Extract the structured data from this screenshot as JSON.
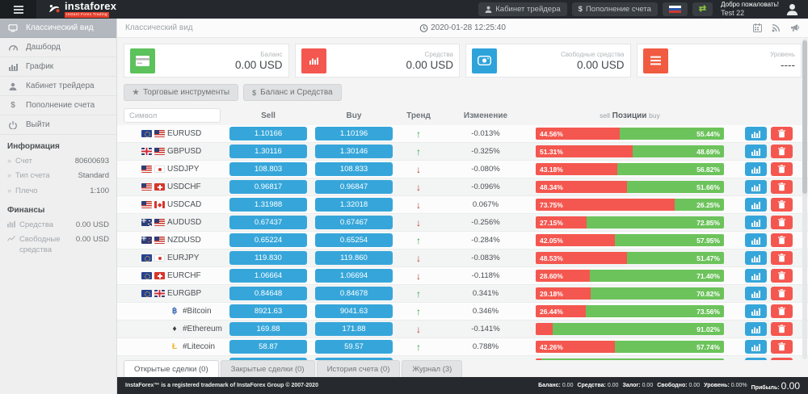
{
  "header": {
    "logo_text": "instaforex",
    "logo_tagline": "Instant Forex Trading",
    "cabinet_button": "Кабинет трейдера",
    "deposit_button": "Пополнение счета",
    "welcome_line1": "Добро пожаловать!",
    "welcome_line2": "Test 22"
  },
  "sidebar": {
    "items": [
      {
        "label": "Классический вид",
        "icon": "monitor-icon",
        "active": true
      },
      {
        "label": "Дашборд",
        "icon": "dashboard-icon",
        "active": false
      },
      {
        "label": "График",
        "icon": "chart-icon",
        "active": false
      },
      {
        "label": "Кабинет трейдера",
        "icon": "user-icon",
        "active": false
      },
      {
        "label": "Пополнение счета",
        "icon": "dollar-icon",
        "active": false
      },
      {
        "label": "Выйти",
        "icon": "power-icon",
        "active": false
      }
    ],
    "info_section": {
      "title": "Информация",
      "rows": [
        {
          "label": "Счет",
          "value": "80600693"
        },
        {
          "label": "Тип счета",
          "value": "Standard"
        },
        {
          "label": "Плечо",
          "value": "1:100"
        }
      ]
    },
    "finance_section": {
      "title": "Финансы",
      "rows": [
        {
          "label": "Средства",
          "value": "0.00 USD",
          "icon": "bar-chart-icon"
        },
        {
          "label": "Свободные средства",
          "value": "0.00 USD",
          "icon": "line-chart-icon"
        }
      ]
    }
  },
  "main": {
    "page_title": "Классический вид",
    "timestamp": "2020-01-28 12:25:40",
    "cards": [
      {
        "label": "Баланс",
        "value": "0.00 USD",
        "icon": "credit-card-icon",
        "color": "#5cc25c"
      },
      {
        "label": "Средства",
        "value": "0.00 USD",
        "icon": "bar-chart-icon",
        "color": "#f4574f"
      },
      {
        "label": "Свободные средства",
        "value": "0.00 USD",
        "icon": "eye-icon",
        "color": "#2ea3da"
      },
      {
        "label": "Уровень",
        "value": "----",
        "icon": "menu-icon",
        "color": "#f15b41"
      }
    ],
    "toolbar": [
      {
        "label": "Торговые инструменты",
        "icon": "star-icon",
        "glyph": "★"
      },
      {
        "label": "Баланс и Средства",
        "icon": "dollar-icon",
        "glyph": "$"
      }
    ],
    "table": {
      "search_placeholder": "Символ",
      "headers": {
        "sell": "Sell",
        "buy": "Buy",
        "trend": "Тренд",
        "change": "Изменение"
      },
      "positions_header": {
        "left": "sell",
        "center": "Позиции",
        "right": "buy"
      },
      "rows": [
        {
          "symbol": "EURUSD",
          "flags": [
            "eu",
            "us"
          ],
          "sell": "1.10166",
          "buy": "1.10196",
          "trend": "up",
          "change": "-0.013%",
          "sell_pct": 44.56,
          "sell_label": "44.56%",
          "buy_pct": 55.44,
          "buy_label": "55.44%"
        },
        {
          "symbol": "GBPUSD",
          "flags": [
            "gb",
            "us"
          ],
          "sell": "1.30116",
          "buy": "1.30146",
          "trend": "up",
          "change": "-0.325%",
          "sell_pct": 51.31,
          "sell_label": "51.31%",
          "buy_pct": 48.69,
          "buy_label": "48.69%"
        },
        {
          "symbol": "USDJPY",
          "flags": [
            "us",
            "jp"
          ],
          "sell": "108.803",
          "buy": "108.833",
          "trend": "down",
          "change": "-0.080%",
          "sell_pct": 43.18,
          "sell_label": "43.18%",
          "buy_pct": 56.82,
          "buy_label": "56.82%"
        },
        {
          "symbol": "USDCHF",
          "flags": [
            "us",
            "ch"
          ],
          "sell": "0.96817",
          "buy": "0.96847",
          "trend": "down",
          "change": "-0.096%",
          "sell_pct": 48.34,
          "sell_label": "48.34%",
          "buy_pct": 51.66,
          "buy_label": "51.66%"
        },
        {
          "symbol": "USDCAD",
          "flags": [
            "us",
            "ca"
          ],
          "sell": "1.31988",
          "buy": "1.32018",
          "trend": "down",
          "change": "0.067%",
          "sell_pct": 73.75,
          "sell_label": "73.75%",
          "buy_pct": 26.25,
          "buy_label": "26.25%"
        },
        {
          "symbol": "AUDUSD",
          "flags": [
            "au",
            "us"
          ],
          "sell": "0.67437",
          "buy": "0.67467",
          "trend": "down",
          "change": "-0.256%",
          "sell_pct": 27.15,
          "sell_label": "27.15%",
          "buy_pct": 72.85,
          "buy_label": "72.85%"
        },
        {
          "symbol": "NZDUSD",
          "flags": [
            "nz",
            "us"
          ],
          "sell": "0.65224",
          "buy": "0.65254",
          "trend": "up",
          "change": "-0.284%",
          "sell_pct": 42.05,
          "sell_label": "42.05%",
          "buy_pct": 57.95,
          "buy_label": "57.95%"
        },
        {
          "symbol": "EURJPY",
          "flags": [
            "eu",
            "jp"
          ],
          "sell": "119.830",
          "buy": "119.860",
          "trend": "down",
          "change": "-0.083%",
          "sell_pct": 48.53,
          "sell_label": "48.53%",
          "buy_pct": 51.47,
          "buy_label": "51.47%"
        },
        {
          "symbol": "EURCHF",
          "flags": [
            "eu",
            "ch"
          ],
          "sell": "1.06664",
          "buy": "1.06694",
          "trend": "down",
          "change": "-0.118%",
          "sell_pct": 28.6,
          "sell_label": "28.60%",
          "buy_pct": 71.4,
          "buy_label": "71.40%"
        },
        {
          "symbol": "EURGBP",
          "flags": [
            "eu",
            "gb"
          ],
          "sell": "0.84648",
          "buy": "0.84678",
          "trend": "up",
          "change": "0.341%",
          "sell_pct": 29.18,
          "sell_label": "29.18%",
          "buy_pct": 70.82,
          "buy_label": "70.82%"
        },
        {
          "symbol": "#Bitcoin",
          "crypto": "btc",
          "sell": "8921.63",
          "buy": "9041.63",
          "trend": "up",
          "change": "0.346%",
          "sell_pct": 26.44,
          "sell_label": "26.44%",
          "buy_pct": 73.56,
          "buy_label": "73.56%"
        },
        {
          "symbol": "#Ethereum",
          "crypto": "eth",
          "sell": "169.88",
          "buy": "171.88",
          "trend": "down",
          "change": "-0.141%",
          "sell_pct": 8.98,
          "sell_label": "",
          "buy_pct": 91.02,
          "buy_label": "91.02%"
        },
        {
          "symbol": "#Litecoin",
          "crypto": "ltc",
          "sell": "58.87",
          "buy": "59.57",
          "trend": "up",
          "change": "0.788%",
          "sell_pct": 42.26,
          "sell_label": "42.26%",
          "buy_pct": 57.74,
          "buy_label": "57.74%"
        },
        {
          "symbol": "",
          "flags": [],
          "sell": "",
          "buy": "",
          "trend": "",
          "change": "",
          "sell_pct": 3,
          "sell_label": "",
          "buy_pct": 97,
          "buy_label": "",
          "partial": true
        }
      ]
    },
    "tabs": [
      {
        "label": "Открытые сделки (0)",
        "active": true
      },
      {
        "label": "Закрытые сделки (0)",
        "active": false
      },
      {
        "label": "История счета (0)",
        "active": false
      },
      {
        "label": "Журнал (3)",
        "active": false
      }
    ]
  },
  "footer": {
    "trademark": "InstaForex™ is a registered trademark of InstaForex Group © 2007-2020",
    "stats": [
      {
        "label": "Баланс:",
        "value": "0.00"
      },
      {
        "label": "Средства:",
        "value": "0.00"
      },
      {
        "label": "Залог:",
        "value": "0.00"
      },
      {
        "label": "Свободно:",
        "value": "0.00"
      },
      {
        "label": "Уровень:",
        "value": "0.00%"
      },
      {
        "label": "Прибыль:",
        "value": "0.00"
      }
    ]
  }
}
